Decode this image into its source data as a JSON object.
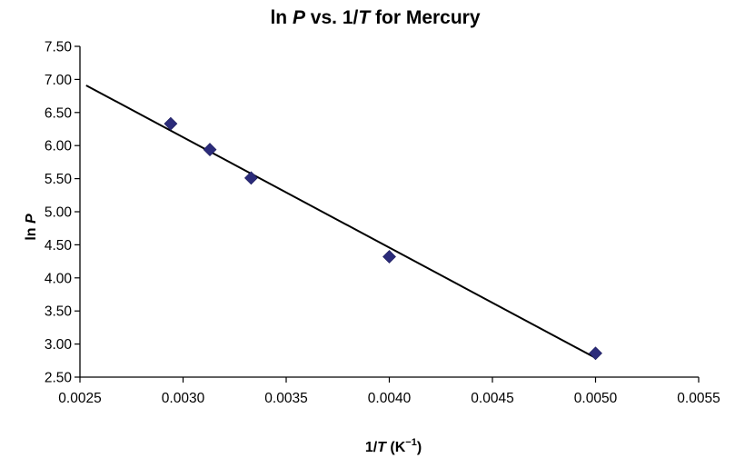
{
  "chart_data": {
    "type": "scatter",
    "title": {
      "prefix": "ln ",
      "italic1": "P",
      "middle": " vs. 1/",
      "italic2": "T",
      "suffix": " for Mercury"
    },
    "xlabel": {
      "prefix": "1/",
      "italic": "T",
      "unit_open": " (K",
      "superscript": "−1",
      "unit_close": ")"
    },
    "ylabel": {
      "prefix": "ln ",
      "italic": "P"
    },
    "xlim": [
      0.0025,
      0.0055
    ],
    "ylim": [
      2.5,
      7.5
    ],
    "x_ticks": [
      "0.0025",
      "0.0030",
      "0.0035",
      "0.0040",
      "0.0045",
      "0.0050",
      "0.0055"
    ],
    "y_ticks": [
      "7.50",
      "7.00",
      "6.50",
      "6.00",
      "5.50",
      "5.00",
      "4.50",
      "4.00",
      "3.50",
      "3.00",
      "2.50"
    ],
    "grid": false,
    "marker_color": "#2b2b7a",
    "line_color": "#000000",
    "series": [
      {
        "points": [
          {
            "x": 0.00294,
            "y": 6.33
          },
          {
            "x": 0.00313,
            "y": 5.94
          },
          {
            "x": 0.00333,
            "y": 5.51
          },
          {
            "x": 0.004,
            "y": 4.32
          },
          {
            "x": 0.005,
            "y": 2.86
          }
        ]
      }
    ],
    "trendline": {
      "points": [
        {
          "x": 0.00253,
          "y": 6.91
        },
        {
          "x": 0.005,
          "y": 2.79
        }
      ]
    }
  }
}
